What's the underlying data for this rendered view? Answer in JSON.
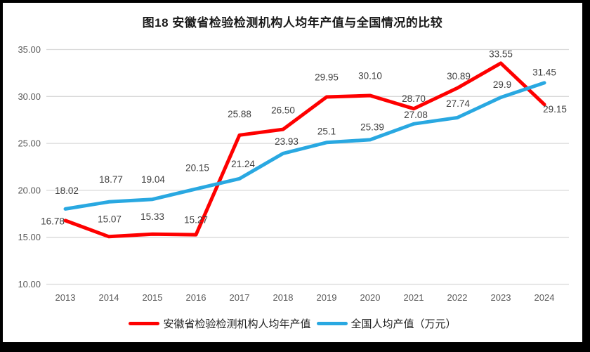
{
  "chart_data": {
    "type": "line",
    "title": "图18 安徽省检验检测机构人均年产值与全国情况的比较",
    "categories": [
      "2013",
      "2014",
      "2015",
      "2016",
      "2017",
      "2018",
      "2019",
      "2020",
      "2021",
      "2022",
      "2023",
      "2024"
    ],
    "series": [
      {
        "name": "安徽省检验检测机构人均年产值",
        "color": "#fe0000",
        "values": [
          16.78,
          15.07,
          15.33,
          15.27,
          25.88,
          26.5,
          29.95,
          30.1,
          28.7,
          30.89,
          33.55,
          29.15
        ],
        "labels": [
          "16.78",
          "15.07",
          "15.33",
          "15.27",
          "25.88",
          "26.50",
          "29.95",
          "30.10",
          "28.70",
          "30.89",
          "33.55",
          "29.15"
        ]
      },
      {
        "name": "全国人均产值（万元）",
        "color": "#29a8e1",
        "values": [
          18.02,
          18.77,
          19.04,
          20.15,
          21.24,
          23.93,
          25.1,
          25.39,
          27.08,
          27.74,
          29.9,
          31.45
        ],
        "labels": [
          "18.02",
          "18.77",
          "19.04",
          "20.15",
          "21.24",
          "23.93",
          "25.1",
          "25.39",
          "27.08",
          "27.74",
          "29.9",
          "31.45"
        ]
      }
    ],
    "ylim": [
      10,
      35
    ],
    "ytick_labels": [
      "35.00",
      "30.00",
      "25.00",
      "20.00",
      "15.00",
      "10.00"
    ],
    "grid": "horizontal",
    "legend_position": "bottom",
    "data_labels_shown": true
  },
  "colors": {
    "frame": "#000000",
    "background": "#ffffff",
    "gridline": "#d9d9d9",
    "axis_text": "#595959",
    "data_label_text": "#404040",
    "title_text": "#1a1a1a"
  }
}
